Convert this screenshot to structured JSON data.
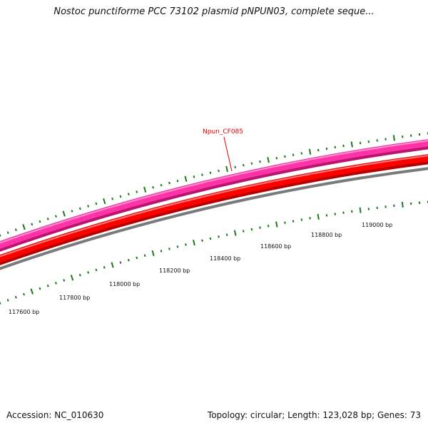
{
  "title": "Nostoc punctiforme PCC 73102 plasmid pNPUN03, complete seque...",
  "footer": {
    "accession": "Accession: NC_010630",
    "summary": "Topology: circular; Length: 123,028 bp; Genes: 73"
  },
  "colors": {
    "tick": "#1a7a1a",
    "gene_pink": "#ff33a8",
    "gene_pink_dark": "#b8156e",
    "gene_red": "#ff0000",
    "gene_red_dark": "#b50000",
    "backbone": "#808080",
    "label_red": "#e00000"
  },
  "gene_label": "Npun_CF085",
  "tick_labels": [
    "117600 bp",
    "117800 bp",
    "118000 bp",
    "118200 bp",
    "118400 bp",
    "118600 bp",
    "118800 bp",
    "119000 bp"
  ]
}
